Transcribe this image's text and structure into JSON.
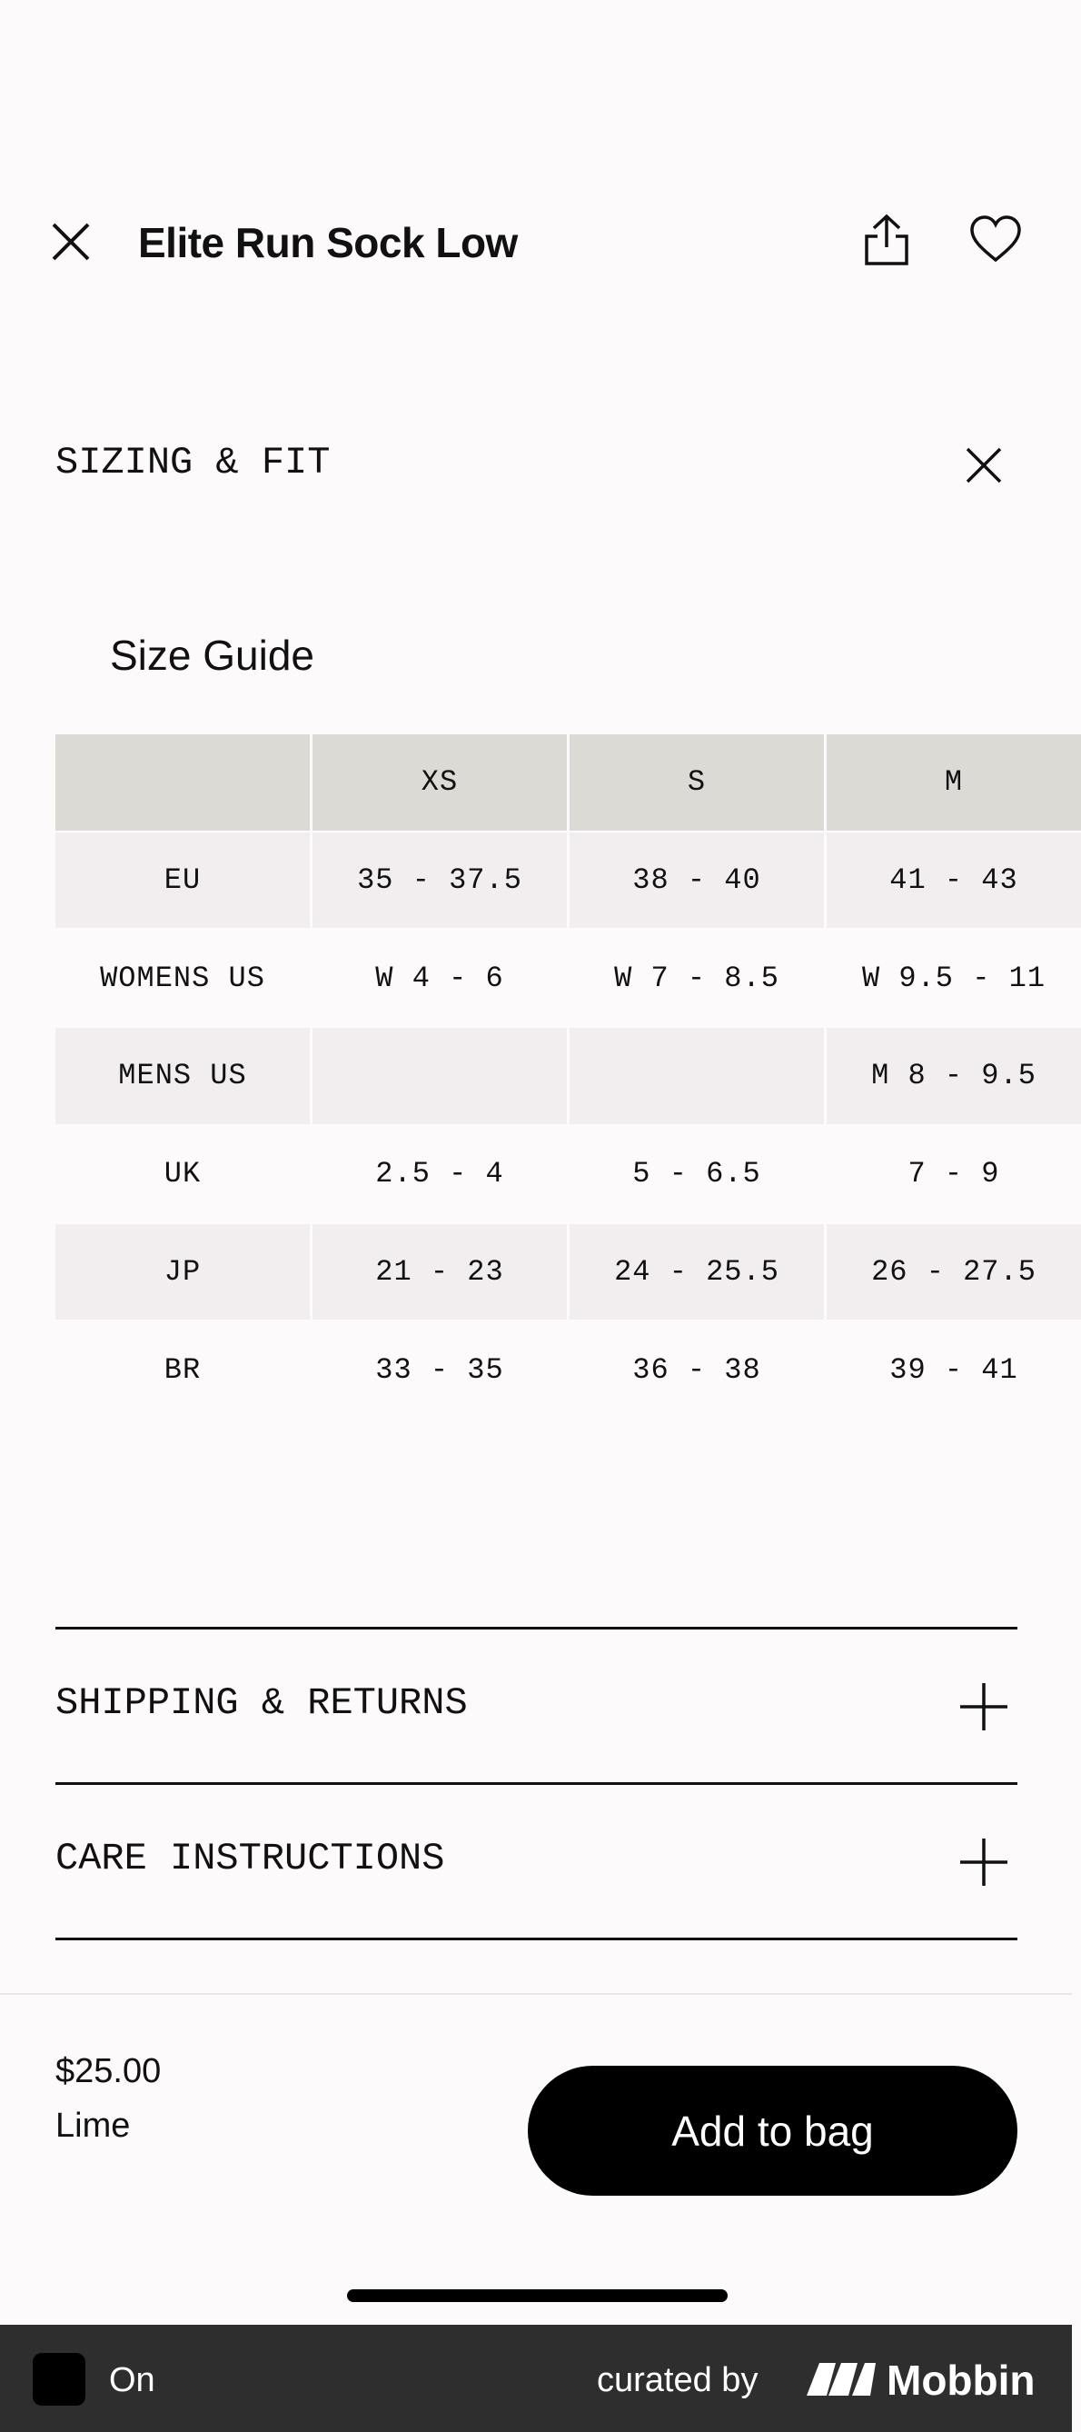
{
  "header": {
    "title": "Elite Run Sock Low"
  },
  "sizing": {
    "label": "SIZING & FIT",
    "guide_title": "Size Guide"
  },
  "table": {
    "columns": [
      null,
      "XS",
      "S",
      "M"
    ],
    "rows": [
      [
        "EU",
        "35 - 37.5",
        "38 - 40",
        "41 - 43"
      ],
      [
        "WOMENS US",
        "W 4 - 6",
        "W 7 - 8.5",
        "W 9.5 - 11"
      ],
      [
        "MENS US",
        null,
        null,
        "M 8 - 9.5"
      ],
      [
        "UK",
        "2.5 - 4",
        "5 - 6.5",
        "7 - 9"
      ],
      [
        "JP",
        "21 - 23",
        "24 - 25.5",
        "26 - 27.5"
      ],
      [
        "BR",
        "33 - 35",
        "36 - 38",
        "39 - 41"
      ]
    ]
  },
  "sections": [
    "SHIPPING & RETURNS",
    "CARE INSTRUCTIONS"
  ],
  "bottom": {
    "price": "$25.00",
    "color": "Lime",
    "button": "Add to bag"
  },
  "footer": {
    "app": "On",
    "curated": "curated by",
    "brand": "Mobbin"
  }
}
